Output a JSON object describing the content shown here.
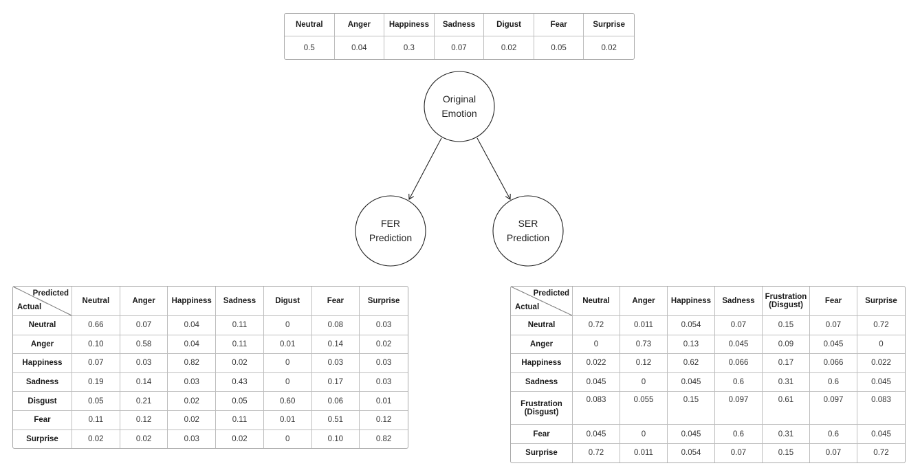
{
  "top_table": {
    "headers": [
      "Neutral",
      "Anger",
      "Happiness",
      "Sadness",
      "Digust",
      "Fear",
      "Surprise"
    ],
    "values": [
      "0.5",
      "0.04",
      "0.3",
      "0.07",
      "0.02",
      "0.05",
      "0.02"
    ]
  },
  "nodes": {
    "original": [
      "Original",
      "Emotion"
    ],
    "fer": [
      "FER",
      "Prediction"
    ],
    "ser": [
      "SER",
      "Prediction"
    ]
  },
  "fer_matrix": {
    "corner_predicted": "Predicted",
    "corner_actual": "Actual",
    "headers": [
      "Neutral",
      "Anger",
      "Happiness",
      "Sadness",
      "Digust",
      "Fear",
      "Surprise"
    ],
    "rows": [
      {
        "label": "Neutral",
        "values": [
          "0.66",
          "0.07",
          "0.04",
          "0.11",
          "0",
          "0.08",
          "0.03"
        ]
      },
      {
        "label": "Anger",
        "values": [
          "0.10",
          "0.58",
          "0.04",
          "0.11",
          "0.01",
          "0.14",
          "0.02"
        ]
      },
      {
        "label": "Happiness",
        "values": [
          "0.07",
          "0.03",
          "0.82",
          "0.02",
          "0",
          "0.03",
          "0.03"
        ]
      },
      {
        "label": "Sadness",
        "values": [
          "0.19",
          "0.14",
          "0.03",
          "0.43",
          "0",
          "0.17",
          "0.03"
        ]
      },
      {
        "label": "Disgust",
        "values": [
          "0.05",
          "0.21",
          "0.02",
          "0.05",
          "0.60",
          "0.06",
          "0.01"
        ]
      },
      {
        "label": "Fear",
        "values": [
          "0.11",
          "0.12",
          "0.02",
          "0.11",
          "0.01",
          "0.51",
          "0.12"
        ]
      },
      {
        "label": "Surprise",
        "values": [
          "0.02",
          "0.02",
          "0.03",
          "0.02",
          "0",
          "0.10",
          "0.82"
        ]
      }
    ]
  },
  "ser_matrix": {
    "corner_predicted": "Predicted",
    "corner_actual": "Actual",
    "headers": [
      "Neutral",
      "Anger",
      "Happiness",
      "Sadness",
      "Frustration",
      "Fear",
      "Surprise"
    ],
    "header_sub": "(Disgust)",
    "rows": [
      {
        "label": "Neutral",
        "values": [
          "0.72",
          "0.011",
          "0.054",
          "0.07",
          "0.15",
          "0.07",
          "0.72"
        ]
      },
      {
        "label": "Anger",
        "values": [
          "0",
          "0.73",
          "0.13",
          "0.045",
          "0.09",
          "0.045",
          "0"
        ]
      },
      {
        "label": "Happiness",
        "values": [
          "0.022",
          "0.12",
          "0.62",
          "0.066",
          "0.17",
          "0.066",
          "0.022"
        ]
      },
      {
        "label": "Sadness",
        "values": [
          "0.045",
          "0",
          "0.045",
          "0.6",
          "0.31",
          "0.6",
          "0.045"
        ]
      },
      {
        "label": "Frustration",
        "label_sub": "(Disgust)",
        "values": [
          "0.083",
          "0.055",
          "0.15",
          "0.097",
          "0.61",
          "0.097",
          "0.083"
        ]
      },
      {
        "label": "Fear",
        "values": [
          "0.045",
          "0",
          "0.045",
          "0.6",
          "0.31",
          "0.6",
          "0.045"
        ]
      },
      {
        "label": "Surprise",
        "values": [
          "0.72",
          "0.011",
          "0.054",
          "0.07",
          "0.15",
          "0.07",
          "0.72"
        ]
      }
    ]
  }
}
